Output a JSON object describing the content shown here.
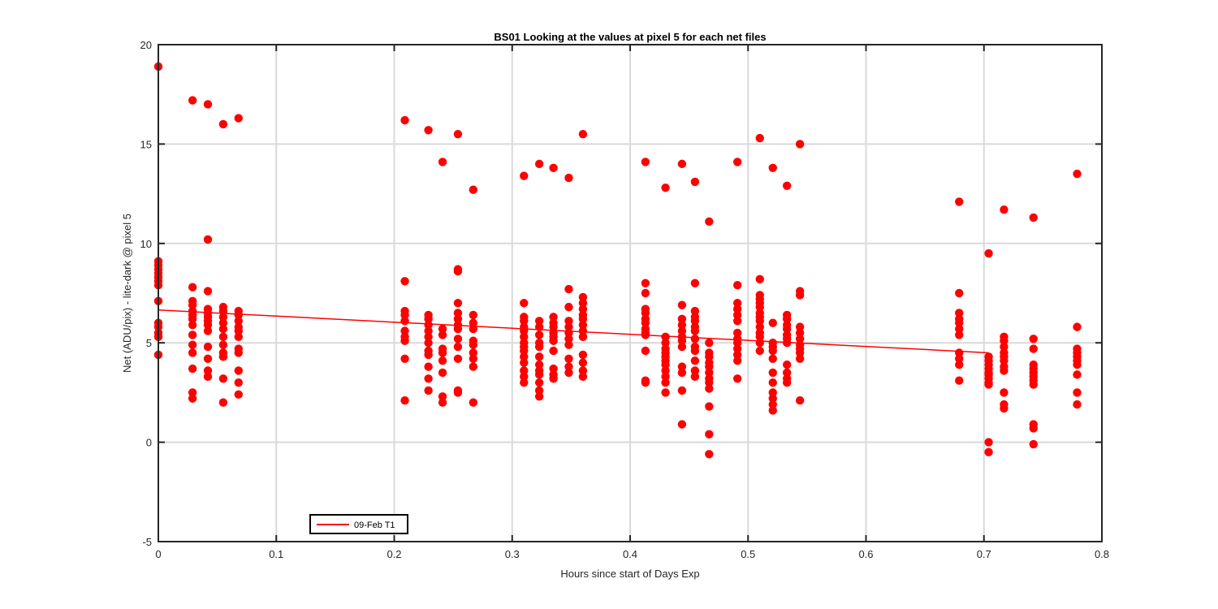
{
  "chart_data": {
    "type": "scatter",
    "title": "BS01  Looking at the values at pixel 5 for each net files",
    "xlabel": "Hours since start of Days Exp",
    "ylabel": "Net (ADU/pix) - lite-dark @ pixel 5",
    "xlim": [
      0,
      0.8
    ],
    "ylim": [
      -5,
      20
    ],
    "xticks": [
      "0",
      "0.1",
      "0.2",
      "0.3",
      "0.4",
      "0.5",
      "0.6",
      "0.7",
      "0.8"
    ],
    "yticks": [
      "-5",
      "0",
      "5",
      "10",
      "15",
      "20"
    ],
    "grid": true,
    "legend": {
      "placement": "bottom-left",
      "entries": [
        "09-Feb T1"
      ]
    },
    "colors": {
      "points": "#ff0000",
      "fit": "#ff0000",
      "grid": "#d9d9d9",
      "axes": "#262626"
    },
    "points": [
      {
        "x": 0.0,
        "y": [
          18.9,
          9.1,
          8.9,
          8.7,
          8.5,
          8.3,
          8.1,
          7.9,
          7.1,
          6.0,
          5.8,
          5.5,
          5.3,
          4.4
        ]
      },
      {
        "x": 0.029,
        "y": [
          17.2,
          7.8,
          7.1,
          6.9,
          6.6,
          6.4,
          6.2,
          5.9,
          5.4,
          4.9,
          4.5,
          3.7,
          2.5,
          2.2
        ]
      },
      {
        "x": 0.042,
        "y": [
          17.0,
          10.2,
          7.6,
          6.7,
          6.5,
          6.3,
          6.1,
          5.9,
          5.6,
          4.8,
          4.2,
          3.6,
          3.3
        ]
      },
      {
        "x": 0.055,
        "y": [
          16.0,
          6.8,
          6.6,
          6.3,
          6.0,
          5.7,
          5.3,
          4.9,
          4.5,
          4.3,
          3.2,
          2.0
        ]
      },
      {
        "x": 0.068,
        "y": [
          16.3,
          6.6,
          6.4,
          6.1,
          5.8,
          5.6,
          5.3,
          4.7,
          4.5,
          3.6,
          3.0,
          2.4
        ]
      },
      {
        "x": 0.209,
        "y": [
          16.2,
          8.1,
          6.6,
          6.4,
          6.1,
          5.6,
          5.3,
          5.1,
          4.2,
          2.1
        ]
      },
      {
        "x": 0.229,
        "y": [
          15.7,
          6.4,
          6.2,
          5.9,
          5.6,
          5.3,
          5.0,
          4.6,
          4.4,
          3.8,
          3.2,
          2.6
        ]
      },
      {
        "x": 0.241,
        "y": [
          14.1,
          5.7,
          5.4,
          4.7,
          4.5,
          4.1,
          3.5,
          2.3,
          2.0
        ]
      },
      {
        "x": 0.254,
        "y": [
          15.5,
          8.7,
          8.6,
          7.0,
          6.5,
          6.2,
          5.9,
          5.7,
          5.2,
          4.8,
          4.2,
          2.6,
          2.5
        ]
      },
      {
        "x": 0.267,
        "y": [
          12.7,
          6.4,
          6.0,
          5.7,
          5.1,
          4.9,
          4.5,
          4.2,
          3.8,
          2.0
        ]
      },
      {
        "x": 0.31,
        "y": [
          13.4,
          7.0,
          6.3,
          6.1,
          5.8,
          5.6,
          5.3,
          5.0,
          4.8,
          4.6,
          4.3,
          4.0,
          3.6,
          3.3,
          3.0
        ]
      },
      {
        "x": 0.323,
        "y": [
          14.0,
          6.1,
          5.8,
          5.4,
          5.0,
          4.8,
          4.3,
          3.9,
          3.6,
          3.4,
          3.0,
          2.6,
          2.3
        ]
      },
      {
        "x": 0.335,
        "y": [
          13.8,
          6.3,
          6.0,
          5.8,
          5.5,
          5.3,
          5.1,
          4.6,
          3.7,
          3.4,
          3.2
        ]
      },
      {
        "x": 0.348,
        "y": [
          13.3,
          7.7,
          6.8,
          6.1,
          5.8,
          5.5,
          5.2,
          4.9,
          4.2,
          3.8,
          3.5
        ]
      },
      {
        "x": 0.36,
        "y": [
          15.5,
          7.3,
          7.0,
          6.7,
          6.4,
          6.2,
          5.9,
          5.6,
          5.3,
          4.4,
          4.0,
          3.6,
          3.3
        ]
      },
      {
        "x": 0.413,
        "y": [
          14.1,
          8.0,
          7.5,
          6.7,
          6.5,
          6.2,
          6.0,
          5.7,
          5.5,
          5.4,
          4.6,
          3.1,
          3.0
        ]
      },
      {
        "x": 0.43,
        "y": [
          12.8,
          5.3,
          5.0,
          4.7,
          4.5,
          4.3,
          4.1,
          3.9,
          3.6,
          3.3,
          3.0,
          2.5
        ]
      },
      {
        "x": 0.444,
        "y": [
          14.0,
          6.9,
          6.2,
          5.9,
          5.6,
          5.3,
          5.1,
          4.8,
          3.8,
          3.5,
          2.6,
          0.9
        ]
      },
      {
        "x": 0.455,
        "y": [
          13.1,
          8.0,
          6.6,
          6.3,
          6.1,
          5.8,
          5.6,
          5.2,
          4.8,
          4.6,
          4.1,
          3.6,
          3.3
        ]
      },
      {
        "x": 0.467,
        "y": [
          11.1,
          5.0,
          4.5,
          4.3,
          4.0,
          3.8,
          3.5,
          3.2,
          3.0,
          2.7,
          1.8,
          0.4,
          -0.6
        ]
      },
      {
        "x": 0.491,
        "y": [
          14.1,
          7.9,
          7.0,
          6.7,
          6.4,
          6.1,
          5.5,
          5.2,
          5.0,
          4.7,
          4.4,
          4.1,
          3.2
        ]
      },
      {
        "x": 0.51,
        "y": [
          15.3,
          8.2,
          7.4,
          7.2,
          7.0,
          6.8,
          6.5,
          6.3,
          6.1,
          5.8,
          5.5,
          5.3,
          5.0,
          4.6
        ]
      },
      {
        "x": 0.521,
        "y": [
          13.8,
          6.0,
          5.0,
          4.8,
          4.6,
          4.2,
          3.5,
          3.0,
          2.5,
          2.2,
          1.9,
          1.6
        ]
      },
      {
        "x": 0.533,
        "y": [
          12.9,
          6.4,
          6.2,
          5.9,
          5.7,
          5.4,
          5.2,
          5.0,
          3.9,
          3.5,
          3.2,
          3.0
        ]
      },
      {
        "x": 0.544,
        "y": [
          15.0,
          7.6,
          7.4,
          5.8,
          5.5,
          5.2,
          4.9,
          4.7,
          4.5,
          4.2,
          2.1
        ]
      },
      {
        "x": 0.679,
        "y": [
          12.1,
          7.5,
          6.5,
          6.2,
          6.0,
          5.7,
          5.4,
          4.5,
          4.2,
          3.9,
          3.1
        ]
      },
      {
        "x": 0.704,
        "y": [
          9.5,
          4.3,
          4.1,
          3.9,
          3.7,
          3.5,
          3.4,
          3.2,
          3.0,
          2.9,
          0.0,
          -0.5
        ]
      },
      {
        "x": 0.717,
        "y": [
          11.7,
          5.3,
          5.1,
          4.8,
          4.5,
          4.3,
          4.1,
          3.8,
          3.6,
          2.5,
          1.9,
          1.7
        ]
      },
      {
        "x": 0.742,
        "y": [
          11.3,
          5.2,
          4.7,
          3.9,
          3.7,
          3.5,
          3.3,
          3.1,
          2.9,
          0.9,
          0.7,
          -0.1
        ]
      },
      {
        "x": 0.779,
        "y": [
          13.5,
          5.8,
          4.7,
          4.5,
          4.3,
          4.1,
          3.9,
          3.4,
          2.5,
          1.9
        ]
      }
    ],
    "series": [
      {
        "name": "09-Feb T1",
        "type": "line",
        "x": [
          0.0,
          0.704
        ],
        "y": [
          6.65,
          4.5
        ]
      }
    ]
  }
}
